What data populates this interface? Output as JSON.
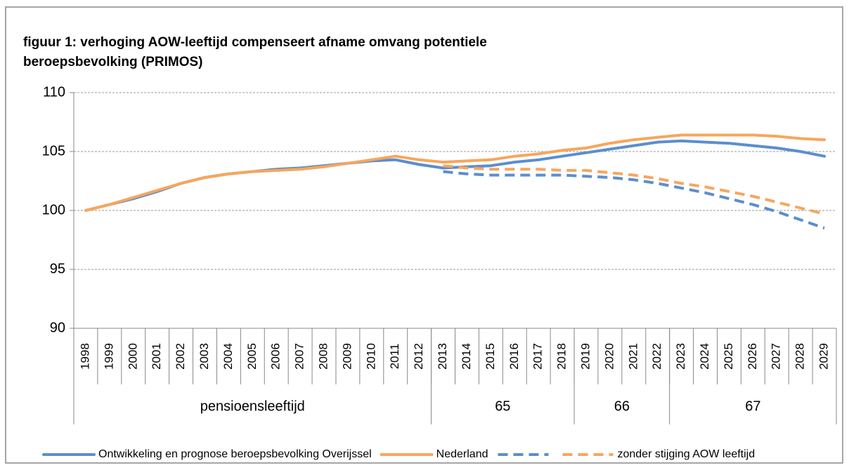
{
  "chart_data": {
    "type": "line",
    "title": [
      "figuur 1: verhoging AOW-leeftijd compenseert afname omvang potentiele",
      "beroepsbevolking (PRIMOS)"
    ],
    "categories": [
      "1998",
      "1999",
      "2000",
      "2001",
      "2002",
      "2003",
      "2004",
      "2005",
      "2006",
      "2007",
      "2008",
      "2009",
      "2010",
      "2011",
      "2012",
      "2013",
      "2014",
      "2015",
      "2016",
      "2017",
      "2018",
      "2019",
      "2020",
      "2021",
      "2022",
      "2023",
      "2024",
      "2025",
      "2026",
      "2027",
      "2028",
      "2029"
    ],
    "groups": [
      {
        "label": "pensioensleeftijd",
        "span": 15
      },
      {
        "label": "65",
        "span": 6
      },
      {
        "label": "66",
        "span": 4
      },
      {
        "label": "67",
        "span": 7
      }
    ],
    "series": [
      {
        "name": "Ontwikkeling en prognose beroepsbevolking Overijssel",
        "color": "#5b8ecf",
        "dash": false,
        "values": [
          100,
          100.5,
          101,
          101.6,
          102.3,
          102.8,
          103.1,
          103.3,
          103.5,
          103.6,
          103.8,
          104.0,
          104.2,
          104.3,
          103.9,
          103.6,
          103.7,
          103.8,
          104.1,
          104.3,
          104.6,
          104.9,
          105.2,
          105.5,
          105.8,
          105.9,
          105.8,
          105.7,
          105.5,
          105.3,
          105.0,
          104.6
        ]
      },
      {
        "name": "Nederland",
        "color": "#f7a65b",
        "dash": false,
        "values": [
          100,
          100.5,
          101.1,
          101.7,
          102.3,
          102.8,
          103.1,
          103.3,
          103.4,
          103.5,
          103.7,
          104.0,
          104.3,
          104.6,
          104.3,
          104.1,
          104.2,
          104.3,
          104.6,
          104.8,
          105.1,
          105.3,
          105.7,
          106.0,
          106.2,
          106.4,
          106.4,
          106.4,
          106.4,
          106.3,
          106.1,
          106.0
        ]
      },
      {
        "name": null,
        "color": "#5b8ecf",
        "dash": true,
        "values": [
          null,
          null,
          null,
          null,
          null,
          null,
          null,
          null,
          null,
          null,
          null,
          null,
          null,
          null,
          null,
          103.3,
          103.1,
          103.0,
          103.0,
          103.0,
          103.0,
          102.9,
          102.8,
          102.6,
          102.3,
          101.9,
          101.5,
          101.0,
          100.5,
          99.9,
          99.2,
          98.5
        ]
      },
      {
        "name": "zonder stijging AOW leeftijd",
        "color": "#f7a65b",
        "dash": true,
        "values": [
          null,
          null,
          null,
          null,
          null,
          null,
          null,
          null,
          null,
          null,
          null,
          null,
          null,
          null,
          null,
          103.8,
          103.6,
          103.5,
          103.5,
          103.5,
          103.4,
          103.4,
          103.2,
          103.0,
          102.7,
          102.3,
          102.0,
          101.6,
          101.2,
          100.7,
          100.2,
          99.7
        ]
      }
    ],
    "ylim": [
      90,
      110
    ],
    "yticks": [
      90,
      95,
      100,
      105,
      110
    ],
    "grid": true,
    "legend": "bottom"
  }
}
